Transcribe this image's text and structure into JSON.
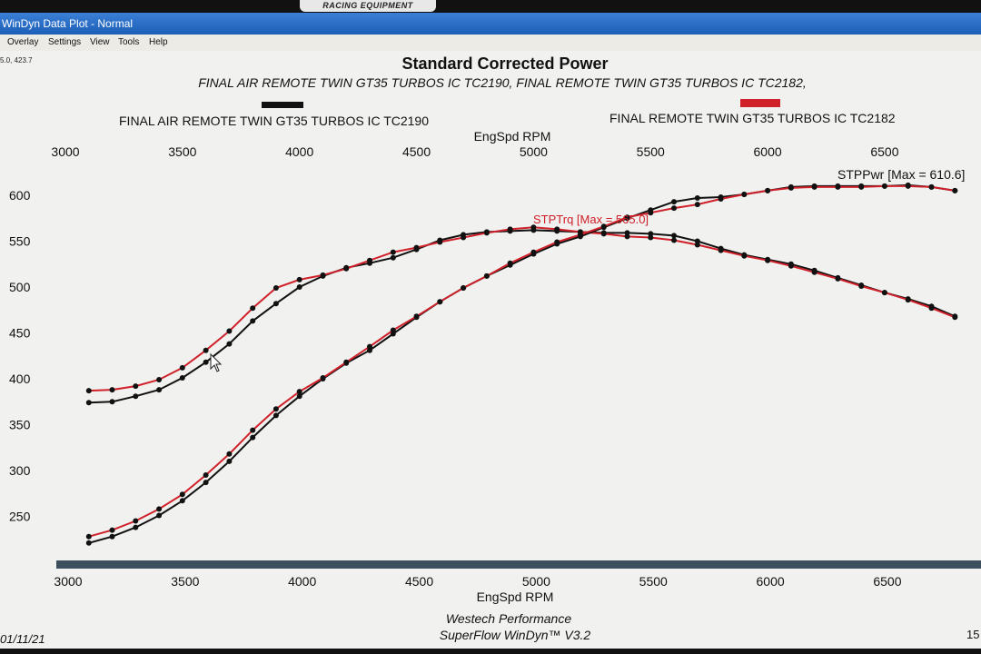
{
  "window": {
    "title": "WinDyn Data Plot - Normal",
    "brand": "RACING EQUIPMENT"
  },
  "menu": [
    {
      "label": "Overlay"
    },
    {
      "label": "Settings"
    },
    {
      "label": "View"
    },
    {
      "label": "Tools"
    },
    {
      "label": "Help"
    }
  ],
  "cursor_readout": "5.0, 423.7",
  "footer": {
    "company": "Westech Performance",
    "software": "SuperFlow WinDyn™  V3.2",
    "date": "01/11/21",
    "page": "15"
  },
  "colors": {
    "run1": "#111111",
    "run2": "#d0202a",
    "background": "#f1f2ef",
    "scrollbar": "#3d4f5c"
  },
  "chart_data": {
    "type": "line",
    "title": "Standard Corrected Power",
    "subtitle": "FINAL AIR REMOTE TWIN GT35 TURBOS IC TC2190, FINAL REMOTE TWIN GT35 TURBOS IC TC2182,",
    "xlabel": "EngSpd RPM",
    "ylabel": "",
    "xlim": [
      3000,
      6800
    ],
    "ylim": [
      200,
      630
    ],
    "x_ticks": [
      3000,
      3500,
      4000,
      4500,
      5000,
      5500,
      6000,
      6500
    ],
    "y_ticks": [
      250,
      300,
      350,
      400,
      450,
      500,
      550,
      600
    ],
    "grid": false,
    "legend": [
      {
        "name": "FINAL AIR REMOTE TWIN GT35 TURBOS IC TC2190",
        "color": "#111111",
        "position": "top-left"
      },
      {
        "name": "FINAL REMOTE TWIN GT35 TURBOS IC TC2182",
        "color": "#d0202a",
        "position": "top-right"
      }
    ],
    "annotations": [
      {
        "text": "STPPwr [Max = 610.6]",
        "x": 6300,
        "y": 622,
        "color": "#111111"
      },
      {
        "text": "STPTrq [Max = 565.0]",
        "x": 4990,
        "y": 573,
        "color": "#d0202a"
      }
    ],
    "series": [
      {
        "name": "FINAL AIR REMOTE TWIN GT35 TURBOS IC TC2190",
        "quantity": "STPTrq",
        "color": "#111111",
        "x": [
          3100,
          3200,
          3300,
          3400,
          3500,
          3600,
          3700,
          3800,
          3900,
          4000,
          4100,
          4200,
          4300,
          4400,
          4500,
          4600,
          4700,
          4800,
          4900,
          5000,
          5100,
          5200,
          5300,
          5400,
          5500,
          5600,
          5700,
          5800,
          5900,
          6000,
          6100,
          6200,
          6300,
          6400,
          6500,
          6600,
          6700,
          6800
        ],
        "y": [
          374,
          375,
          381,
          388,
          401,
          418,
          438,
          463,
          482,
          500,
          512,
          521,
          526,
          532,
          541,
          551,
          557,
          560,
          561,
          562,
          561,
          560,
          559,
          559,
          558,
          556,
          550,
          542,
          535,
          530,
          525,
          518,
          510,
          502,
          494,
          487,
          479,
          468
        ]
      },
      {
        "name": "FINAL REMOTE TWIN GT35 TURBOS IC TC2182",
        "quantity": "STPTrq",
        "color": "#d0202a",
        "x": [
          3100,
          3200,
          3300,
          3400,
          3500,
          3600,
          3700,
          3800,
          3900,
          4000,
          4100,
          4200,
          4300,
          4400,
          4500,
          4600,
          4700,
          4800,
          4900,
          5000,
          5100,
          5200,
          5300,
          5400,
          5500,
          5600,
          5700,
          5800,
          5900,
          6000,
          6100,
          6200,
          6300,
          6400,
          6500,
          6600,
          6700,
          6800
        ],
        "y": [
          387,
          388,
          392,
          399,
          412,
          431,
          452,
          477,
          499,
          508,
          513,
          520,
          529,
          538,
          543,
          549,
          554,
          559,
          563,
          565,
          563,
          560,
          558,
          555,
          554,
          551,
          546,
          540,
          534,
          529,
          523,
          516,
          509,
          501,
          494,
          486,
          477,
          467
        ]
      },
      {
        "name": "FINAL AIR REMOTE TWIN GT35 TURBOS IC TC2190",
        "quantity": "STPPwr",
        "color": "#111111",
        "x": [
          3100,
          3200,
          3300,
          3400,
          3500,
          3600,
          3700,
          3800,
          3900,
          4000,
          4100,
          4200,
          4300,
          4400,
          4500,
          4600,
          4700,
          4800,
          4900,
          5000,
          5100,
          5200,
          5300,
          5400,
          5500,
          5600,
          5700,
          5800,
          5900,
          6000,
          6100,
          6200,
          6300,
          6400,
          6500,
          6600,
          6700,
          6800
        ],
        "y": [
          221,
          228,
          238,
          251,
          267,
          287,
          310,
          336,
          360,
          381,
          400,
          417,
          431,
          449,
          467,
          484,
          499,
          512,
          524,
          536,
          547,
          555,
          565,
          575,
          584,
          593,
          597,
          598,
          601,
          605,
          609,
          610,
          610,
          610,
          610,
          611,
          609,
          605
        ]
      },
      {
        "name": "FINAL REMOTE TWIN GT35 TURBOS IC TC2182",
        "quantity": "STPPwr",
        "color": "#d0202a",
        "x": [
          3100,
          3200,
          3300,
          3400,
          3500,
          3600,
          3700,
          3800,
          3900,
          4000,
          4100,
          4200,
          4300,
          4400,
          4500,
          4600,
          4700,
          4800,
          4900,
          5000,
          5100,
          5200,
          5300,
          5400,
          5500,
          5600,
          5700,
          5800,
          5900,
          6000,
          6100,
          6200,
          6300,
          6400,
          6500,
          6600,
          6700,
          6800
        ],
        "y": [
          228,
          235,
          245,
          258,
          274,
          295,
          318,
          344,
          367,
          386,
          401,
          418,
          435,
          453,
          468,
          484,
          499,
          512,
          526,
          538,
          549,
          557,
          566,
          576,
          581,
          586,
          590,
          596,
          601,
          605,
          608,
          609,
          609,
          609,
          610,
          610,
          609,
          605
        ]
      }
    ]
  }
}
